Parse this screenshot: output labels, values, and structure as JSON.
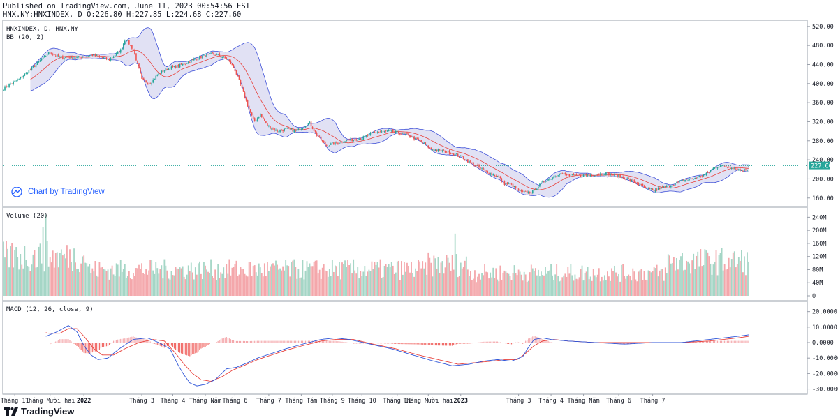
{
  "header": {
    "published": "Published on TradingView.com, June 11, 2023 00:54:56 EST",
    "ohlc_line": "HNX.NY:HNXINDEX, D O:226.80 H:227.85 L:224.68 C:227.60"
  },
  "watermark": {
    "text": "Chart by TradingView",
    "icon": "tradingview-cloud-icon"
  },
  "brand": {
    "text": "TradingView",
    "icon": "tradingview-logo-icon"
  },
  "colors": {
    "up": "#26a69a",
    "down": "#ef5350",
    "vol_up": "#a5d6c6",
    "vol_down": "#f4a7ab",
    "bb_band": "#3f51d8",
    "bb_fill": "#dcdcf2",
    "bb_basis": "#e8413b",
    "macd": "#2f56d8",
    "signal": "#e8413b",
    "price_line": "#26a69a"
  },
  "chart_data": [
    {
      "type": "candlestick",
      "title": "HNXINDEX, D, HNX.NY",
      "indicator_label": "BB (20, 2)",
      "last_price": "227.60",
      "ylim": [
        145,
        530
      ],
      "yticks": [
        "160.00",
        "200.00",
        "240.00",
        "280.00",
        "320.00",
        "360.00",
        "400.00",
        "440.00",
        "480.00",
        "520.00"
      ],
      "close_path": [
        [
          0,
          390
        ],
        [
          10,
          410
        ],
        [
          20,
          440
        ],
        [
          28,
          465
        ],
        [
          35,
          455
        ],
        [
          45,
          455
        ],
        [
          55,
          460
        ],
        [
          65,
          450
        ],
        [
          72,
          470
        ],
        [
          75,
          495
        ],
        [
          80,
          470
        ],
        [
          85,
          408
        ],
        [
          90,
          400
        ],
        [
          95,
          420
        ],
        [
          100,
          430
        ],
        [
          110,
          440
        ],
        [
          120,
          455
        ],
        [
          128,
          462
        ],
        [
          132,
          460
        ],
        [
          138,
          450
        ],
        [
          142,
          430
        ],
        [
          146,
          395
        ],
        [
          150,
          355
        ],
        [
          154,
          320
        ],
        [
          158,
          335
        ],
        [
          162,
          312
        ],
        [
          168,
          300
        ],
        [
          175,
          305
        ],
        [
          180,
          300
        ],
        [
          188,
          318
        ],
        [
          193,
          290
        ],
        [
          198,
          270
        ],
        [
          204,
          275
        ],
        [
          210,
          280
        ],
        [
          220,
          285
        ],
        [
          228,
          298
        ],
        [
          238,
          300
        ],
        [
          245,
          295
        ],
        [
          250,
          290
        ],
        [
          258,
          275
        ],
        [
          263,
          262
        ],
        [
          268,
          260
        ],
        [
          275,
          255
        ],
        [
          282,
          245
        ],
        [
          290,
          228
        ],
        [
          297,
          215
        ],
        [
          300,
          210
        ],
        [
          304,
          205
        ],
        [
          308,
          190
        ],
        [
          312,
          188
        ],
        [
          318,
          172
        ],
        [
          325,
          172
        ],
        [
          332,
          195
        ],
        [
          338,
          205
        ],
        [
          342,
          212
        ],
        [
          348,
          206
        ],
        [
          355,
          207
        ],
        [
          363,
          209
        ],
        [
          370,
          212
        ],
        [
          377,
          207
        ],
        [
          383,
          200
        ],
        [
          390,
          190
        ],
        [
          396,
          178
        ],
        [
          400,
          175
        ],
        [
          403,
          180
        ],
        [
          408,
          184
        ],
        [
          413,
          190
        ],
        [
          418,
          197
        ],
        [
          423,
          200
        ],
        [
          428,
          205
        ],
        [
          432,
          210
        ],
        [
          436,
          222
        ],
        [
          440,
          228
        ],
        [
          443,
          226
        ],
        [
          448,
          225
        ],
        [
          453,
          218
        ],
        [
          458,
          220
        ]
      ],
      "close_values": [
        390,
        410,
        440,
        465,
        455,
        455,
        460,
        450,
        470,
        495,
        470,
        408,
        400,
        420,
        430,
        440,
        455,
        462,
        460,
        450,
        430,
        395,
        355,
        320,
        335,
        312,
        300,
        305,
        300,
        318,
        290,
        270,
        275,
        280,
        285,
        298,
        300,
        295,
        290,
        275,
        262,
        260,
        255,
        245,
        228,
        215,
        210,
        205,
        190,
        188,
        172,
        172,
        195,
        205,
        212,
        206,
        207,
        209,
        212,
        207,
        200,
        190,
        178,
        175,
        180,
        184,
        190,
        197,
        200,
        205,
        210,
        222,
        228,
        226,
        225,
        218,
        220,
        227.6
      ],
      "bb_note": "Bollinger Bands (20, 2) with basis line and shaded band"
    },
    {
      "type": "bar",
      "title": "Volume (20)",
      "ylim": [
        0,
        260
      ],
      "yticks": [
        "0",
        "40M",
        "80M",
        "120M",
        "160M",
        "200M",
        "240M"
      ],
      "unit": "M"
    },
    {
      "type": "line",
      "title": "MACD (12, 26, close, 9)",
      "ylim": [
        -32,
        23
      ],
      "yticks": [
        "20.0000",
        "10.0000",
        "0.0000",
        "-10.0000",
        "-20.0000",
        "-30.0000"
      ],
      "macd_kp": [
        [
          0,
          16
        ],
        [
          12,
          12
        ],
        [
          22,
          5
        ],
        [
          30,
          4
        ],
        [
          38,
          7
        ],
        [
          46,
          11
        ],
        [
          52,
          7
        ],
        [
          57,
          -2
        ],
        [
          62,
          -8
        ],
        [
          67,
          -11
        ],
        [
          74,
          -10
        ],
        [
          82,
          -4
        ],
        [
          92,
          2
        ],
        [
          102,
          3
        ],
        [
          110,
          0
        ],
        [
          118,
          -4
        ],
        [
          124,
          -15
        ],
        [
          128,
          -21
        ],
        [
          132,
          -26
        ],
        [
          137,
          -28
        ],
        [
          143,
          -27
        ],
        [
          150,
          -24
        ],
        [
          158,
          -17
        ],
        [
          165,
          -16
        ],
        [
          173,
          -13
        ],
        [
          180,
          -10
        ],
        [
          190,
          -7
        ],
        [
          200,
          -4
        ],
        [
          212,
          -1
        ],
        [
          225,
          2
        ],
        [
          235,
          3
        ],
        [
          245,
          2
        ],
        [
          260,
          -1
        ],
        [
          275,
          -4
        ],
        [
          290,
          -8
        ],
        [
          305,
          -12
        ],
        [
          318,
          -15
        ],
        [
          330,
          -14
        ],
        [
          340,
          -12
        ],
        [
          350,
          -11
        ],
        [
          360,
          -12
        ],
        [
          368,
          -9
        ],
        [
          372,
          -3
        ],
        [
          376,
          2
        ],
        [
          382,
          3
        ],
        [
          388,
          2
        ],
        [
          400,
          1
        ],
        [
          420,
          0
        ],
        [
          440,
          -1
        ],
        [
          460,
          0
        ],
        [
          480,
          0
        ],
        [
          500,
          2
        ],
        [
          520,
          4
        ],
        [
          528,
          5
        ]
      ],
      "signal_kp": [
        [
          0,
          20
        ],
        [
          12,
          15
        ],
        [
          22,
          8
        ],
        [
          32,
          6
        ],
        [
          40,
          6
        ],
        [
          46,
          9
        ],
        [
          52,
          9
        ],
        [
          58,
          3
        ],
        [
          64,
          -4
        ],
        [
          70,
          -8
        ],
        [
          78,
          -8
        ],
        [
          86,
          -4
        ],
        [
          96,
          0
        ],
        [
          106,
          2
        ],
        [
          114,
          1
        ],
        [
          122,
          -7
        ],
        [
          128,
          -14
        ],
        [
          134,
          -20
        ],
        [
          140,
          -24
        ],
        [
          147,
          -25
        ],
        [
          155,
          -22
        ],
        [
          162,
          -18
        ],
        [
          170,
          -15
        ],
        [
          180,
          -11
        ],
        [
          190,
          -8
        ],
        [
          200,
          -5
        ],
        [
          212,
          -2
        ],
        [
          225,
          1
        ],
        [
          235,
          2
        ],
        [
          248,
          2
        ],
        [
          262,
          -1
        ],
        [
          278,
          -4
        ],
        [
          294,
          -8
        ],
        [
          308,
          -11
        ],
        [
          322,
          -14
        ],
        [
          334,
          -13
        ],
        [
          346,
          -12
        ],
        [
          356,
          -11
        ],
        [
          364,
          -11
        ],
        [
          370,
          -7
        ],
        [
          376,
          -2
        ],
        [
          382,
          1
        ],
        [
          390,
          2
        ],
        [
          400,
          1
        ],
        [
          420,
          0
        ],
        [
          440,
          0
        ],
        [
          460,
          0
        ],
        [
          480,
          0
        ],
        [
          500,
          1
        ],
        [
          520,
          3
        ],
        [
          528,
          4
        ]
      ]
    }
  ],
  "xaxis": {
    "labels": [
      {
        "text": "Tháng 11",
        "bar": 8,
        "bold": false
      },
      {
        "text": "Tháng Mười hai",
        "bar": 33,
        "bold": false
      },
      {
        "text": "2022",
        "bar": 57,
        "bold": true
      },
      {
        "text": "Tháng 3",
        "bar": 98,
        "bold": false
      },
      {
        "text": "Tháng 4",
        "bar": 120,
        "bold": false
      },
      {
        "text": "Tháng Năm",
        "bar": 143,
        "bold": false
      },
      {
        "text": "Tháng 6",
        "bar": 164,
        "bold": false
      },
      {
        "text": "Tháng 7",
        "bar": 188,
        "bold": false
      },
      {
        "text": "Tháng Tám",
        "bar": 211,
        "bold": false
      },
      {
        "text": "Tháng 9",
        "bar": 233,
        "bold": false
      },
      {
        "text": "Tháng 10",
        "bar": 254,
        "bold": false
      },
      {
        "text": "Tháng 11",
        "bar": 279,
        "bold": false
      },
      {
        "text": "Tháng Mười hai",
        "bar": 301,
        "bold": false
      },
      {
        "text": "2023",
        "bar": 324,
        "bold": true
      },
      {
        "text": "Tháng 3",
        "bar": 365,
        "bold": false
      },
      {
        "text": "Tháng 4",
        "bar": 388,
        "bold": false
      },
      {
        "text": "Tháng Năm",
        "bar": 411,
        "bold": false
      },
      {
        "text": "Tháng 6",
        "bar": 436,
        "bold": false
      },
      {
        "text": "Tháng 7",
        "bar": 460,
        "bold": false
      }
    ]
  }
}
